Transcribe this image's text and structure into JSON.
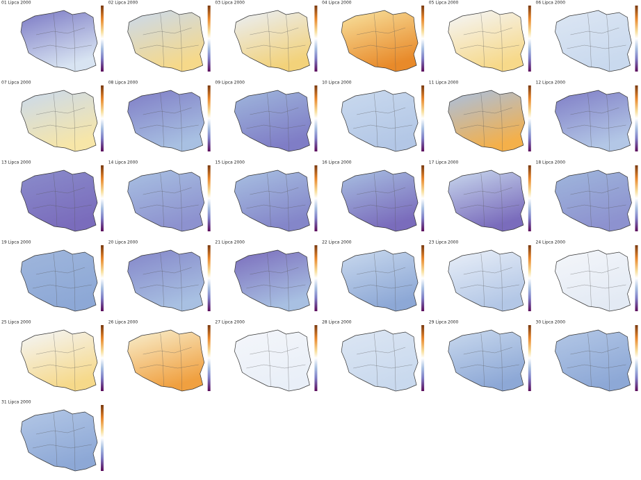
{
  "maps": [
    {
      "title": "01 Lipca 2000",
      "colors": [
        "#7a78c4",
        "#d8e4f2"
      ]
    },
    {
      "title": "02 Lipca 2000",
      "colors": [
        "#c9d9ee",
        "#f6d98a"
      ]
    },
    {
      "title": "03 Lipca 2000",
      "colors": [
        "#e9eff8",
        "#f3d27a"
      ]
    },
    {
      "title": "04 Lipca 2000",
      "colors": [
        "#f8e3a0",
        "#e88a2a"
      ]
    },
    {
      "title": "05 Lipca 2000",
      "colors": [
        "#f4f6fa",
        "#f7d98a"
      ]
    },
    {
      "title": "06 Lipca 2000",
      "colors": [
        "#dce6f3",
        "#c9d9ee"
      ]
    },
    {
      "title": "07 Lipca 2000",
      "colors": [
        "#c9d9ee",
        "#f7e6a8"
      ]
    },
    {
      "title": "08 Lipca 2000",
      "colors": [
        "#7f7dc6",
        "#a8c0e2"
      ]
    },
    {
      "title": "09 Lipca 2000",
      "colors": [
        "#9fb6dc",
        "#7f7dc6"
      ]
    },
    {
      "title": "10 Lipca 2000",
      "colors": [
        "#c9d9ee",
        "#b3c7e6"
      ]
    },
    {
      "title": "11 Lipca 2000",
      "colors": [
        "#a8c0e2",
        "#f4b04a"
      ]
    },
    {
      "title": "12 Lipca 2000",
      "colors": [
        "#7f7dc6",
        "#b3c7e6"
      ]
    },
    {
      "title": "13 Lipca 2000",
      "colors": [
        "#8a8ccb",
        "#7a6cbc"
      ]
    },
    {
      "title": "14 Lipca 2000",
      "colors": [
        "#a8c0e2",
        "#8d92cf"
      ]
    },
    {
      "title": "15 Lipca 2000",
      "colors": [
        "#a8c0e2",
        "#8486c9"
      ]
    },
    {
      "title": "16 Lipca 2000",
      "colors": [
        "#a8c0e2",
        "#7a6cbc"
      ]
    },
    {
      "title": "17 Lipca 2000",
      "colors": [
        "#c9d9ee",
        "#7a6cbc"
      ]
    },
    {
      "title": "18 Lipca 2000",
      "colors": [
        "#9fb6dc",
        "#8d92cf"
      ]
    },
    {
      "title": "19 Lipca 2000",
      "colors": [
        "#9fb6dc",
        "#8da8d6"
      ]
    },
    {
      "title": "20 Lipca 2000",
      "colors": [
        "#8486c9",
        "#a8c0e2"
      ]
    },
    {
      "title": "21 Lipca 2000",
      "colors": [
        "#7a6cbc",
        "#a8c0e2"
      ]
    },
    {
      "title": "22 Lipca 2000",
      "colors": [
        "#c9d9ee",
        "#8da8d6"
      ]
    },
    {
      "title": "23 Lipca 2000",
      "colors": [
        "#e9eff8",
        "#b3c7e6"
      ]
    },
    {
      "title": "24 Lipca 2000",
      "colors": [
        "#f4f6fa",
        "#e3eaf4"
      ]
    },
    {
      "title": "25 Lipca 2000",
      "colors": [
        "#f4f6fa",
        "#f6d98a"
      ]
    },
    {
      "title": "26 Lipca 2000",
      "colors": [
        "#f8f0d0",
        "#f0a040"
      ]
    },
    {
      "title": "27 Lipca 2000",
      "colors": [
        "#f4f6fa",
        "#e9eff8"
      ]
    },
    {
      "title": "28 Lipca 2000",
      "colors": [
        "#dce6f3",
        "#c9d9ee"
      ]
    },
    {
      "title": "29 Lipca 2000",
      "colors": [
        "#c9d9ee",
        "#8da8d6"
      ]
    },
    {
      "title": "30 Lipca 2000",
      "colors": [
        "#b3c7e6",
        "#8da8d6"
      ]
    },
    {
      "title": "31 Lipca 2000",
      "colors": [
        "#b3c7e6",
        "#8da8d6"
      ]
    }
  ]
}
